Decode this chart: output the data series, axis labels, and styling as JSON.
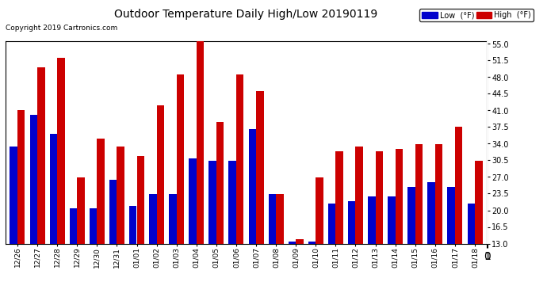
{
  "title": "Outdoor Temperature Daily High/Low 20190119",
  "copyright": "Copyright 2019 Cartronics.com",
  "legend_low_label": "Low  (°F)",
  "legend_high_label": "High  (°F)",
  "low_color": "#0000cc",
  "high_color": "#cc0000",
  "ylim": [
    13.0,
    55.5
  ],
  "yticks": [
    13.0,
    16.5,
    20.0,
    23.5,
    27.0,
    30.5,
    34.0,
    37.5,
    41.0,
    44.5,
    48.0,
    51.5,
    55.0
  ],
  "background_color": "#ffffff",
  "plot_bg_color": "#ffffff",
  "grid_color": "#b0b0b0",
  "dates": [
    "12/26",
    "12/27",
    "12/28",
    "12/29",
    "12/30",
    "12/31",
    "01/01",
    "01/02",
    "01/03",
    "01/04",
    "01/05",
    "01/06",
    "01/07",
    "01/08",
    "01/09",
    "01/10",
    "01/11",
    "01/12",
    "01/13",
    "01/14",
    "01/15",
    "01/16",
    "01/17",
    "01/18"
  ],
  "highs": [
    41.0,
    50.0,
    52.0,
    27.0,
    35.0,
    33.5,
    31.5,
    42.0,
    48.5,
    55.5,
    38.5,
    48.5,
    45.0,
    23.5,
    14.0,
    27.0,
    32.5,
    33.5,
    32.5,
    33.0,
    34.0,
    34.0,
    37.5,
    30.5
  ],
  "lows": [
    33.5,
    40.0,
    36.0,
    20.5,
    20.5,
    26.5,
    21.0,
    23.5,
    23.5,
    31.0,
    30.5,
    30.5,
    37.0,
    23.5,
    13.5,
    13.5,
    21.5,
    22.0,
    23.0,
    23.0,
    25.0,
    26.0,
    25.0,
    21.5
  ]
}
